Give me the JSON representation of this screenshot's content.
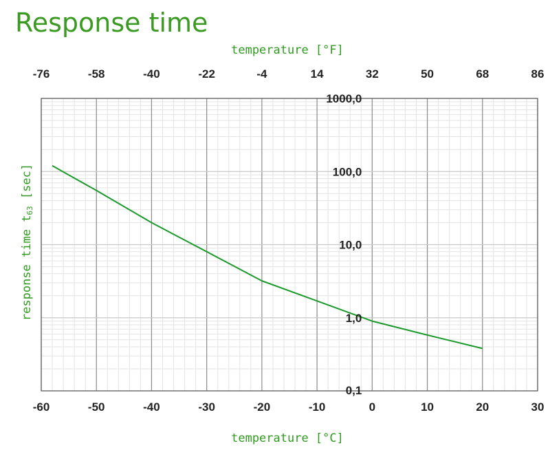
{
  "chart_data": {
    "type": "line",
    "title": "Response time",
    "xlabel": "temperature [°C]",
    "x2label": "temperature [°F]",
    "ylabel": "response time t63 [sec]",
    "ylabel_main": "response time t",
    "ylabel_sub": "63",
    "ylabel_unit": " [sec]",
    "xlim": [
      -60,
      30
    ],
    "ylim": [
      0.1,
      1000
    ],
    "yscale": "log",
    "grid": true,
    "x_ticks": [
      -60,
      -50,
      -40,
      -30,
      -20,
      -10,
      0,
      10,
      20,
      30
    ],
    "x_tick_labels": [
      "-60",
      "-50",
      "-40",
      "-30",
      "-20",
      "-10",
      "0",
      "10",
      "20",
      "30"
    ],
    "x2_ticks": [
      -76,
      -58,
      -40,
      -22,
      -4,
      14,
      32,
      50,
      68,
      86
    ],
    "x2_tick_labels": [
      "-76",
      "-58",
      "-40",
      "-22",
      "-4",
      "14",
      "32",
      "50",
      "68",
      "86"
    ],
    "y_ticks": [
      0.1,
      1,
      10,
      100,
      1000
    ],
    "y_tick_labels": [
      "0,1",
      "1,0",
      "10,0",
      "100,0",
      "1000,0"
    ],
    "series": [
      {
        "name": "response time",
        "color": "#1a9a2a",
        "x": [
          -58,
          -50,
          -40,
          -30,
          -20,
          -10,
          0,
          10,
          20
        ],
        "y": [
          120,
          55,
          20,
          8,
          3.2,
          1.7,
          0.9,
          0.58,
          0.38
        ]
      }
    ]
  }
}
